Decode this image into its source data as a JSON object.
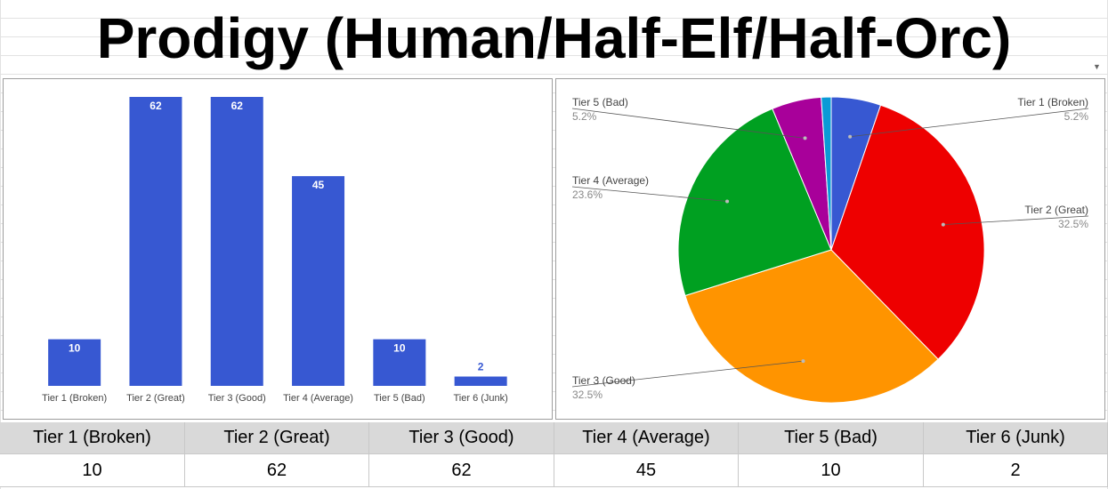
{
  "title": "Prodigy (Human/Half-Elf/Half-Orc)",
  "colors": {
    "bar": "#3758d2",
    "pie": [
      "#3758d2",
      "#ee0000",
      "#ff9400",
      "#00a021",
      "#a8009a",
      "#0a9ad6"
    ]
  },
  "chart_data": [
    {
      "type": "bar",
      "categories": [
        "Tier 1 (Broken)",
        "Tier 2 (Great)",
        "Tier 3 (Good)",
        "Tier 4 (Average)",
        "Tier 5 (Bad)",
        "Tier 6 (Junk)"
      ],
      "values": [
        10,
        62,
        62,
        45,
        10,
        2
      ],
      "data_labels": [
        "10",
        "62",
        "62",
        "45",
        "10",
        "2"
      ],
      "ylim": [
        0,
        62
      ],
      "grid": false,
      "legend": "none"
    },
    {
      "type": "pie",
      "categories": [
        "Tier 1 (Broken)",
        "Tier 2 (Great)",
        "Tier 3 (Good)",
        "Tier 4 (Average)",
        "Tier 5 (Bad)",
        "Tier 6 (Junk)"
      ],
      "values": [
        10,
        62,
        62,
        45,
        10,
        2
      ],
      "labels": [
        {
          "name": "Tier 1 (Broken)",
          "pct": "5.2%"
        },
        {
          "name": "Tier 2 (Great)",
          "pct": "32.5%"
        },
        {
          "name": "Tier 3 (Good)",
          "pct": "32.5%"
        },
        {
          "name": "Tier 4 (Average)",
          "pct": "23.6%"
        },
        {
          "name": "Tier 5 (Bad)",
          "pct": "5.2%"
        }
      ],
      "legend": "none"
    }
  ],
  "table": {
    "headers": [
      "Tier 1 (Broken)",
      "Tier 2 (Great)",
      "Tier 3 (Good)",
      "Tier 4 (Average)",
      "Tier 5 (Bad)",
      "Tier 6 (Junk)"
    ],
    "values": [
      "10",
      "62",
      "62",
      "45",
      "10",
      "2"
    ]
  }
}
